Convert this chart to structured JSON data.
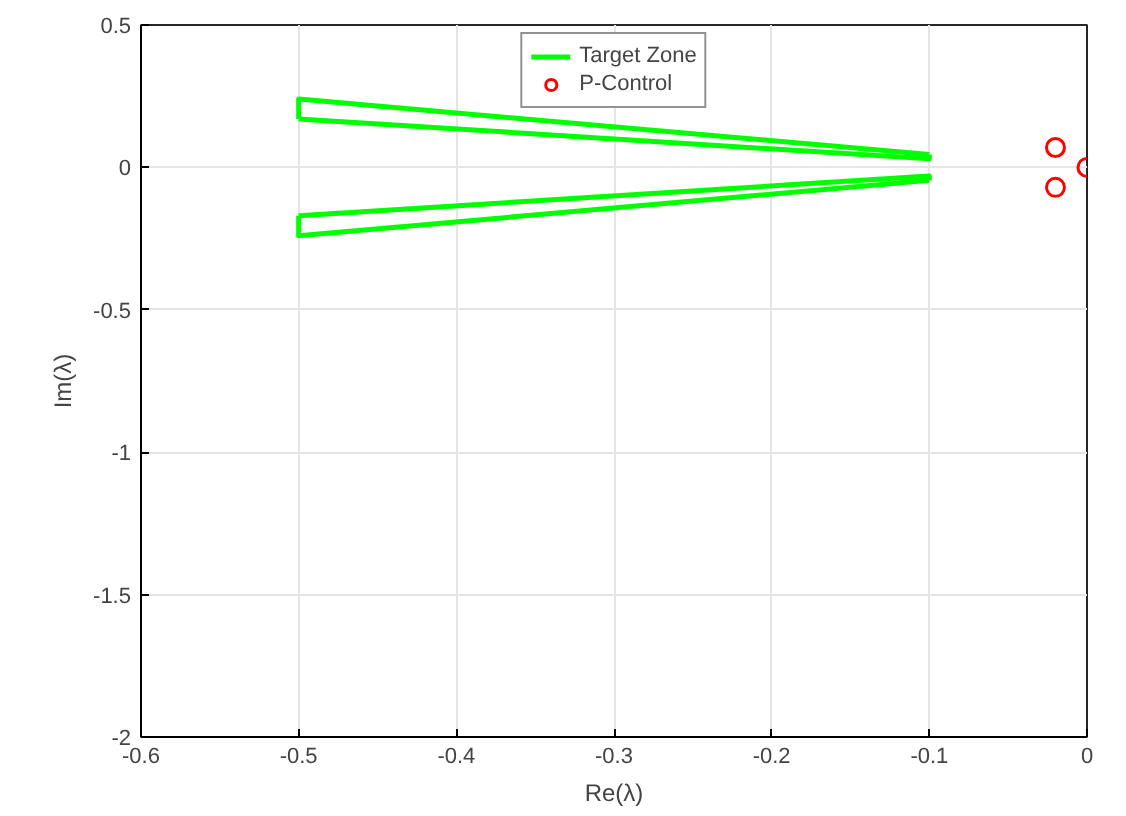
{
  "chart_data": {
    "type": "line",
    "xlabel": "Re(λ)",
    "ylabel": "Im(λ)",
    "series": [
      {
        "name": "Target Zone",
        "color": "#00ff00",
        "x": [
          -0.5,
          -0.5,
          -0.1
        ],
        "values": [
          0.17,
          0.24,
          0.045
        ]
      },
      {
        "color": "#00ff00",
        "x": [
          -0.5,
          -0.1,
          -0.1
        ],
        "values": [
          0.17,
          0.03,
          0.045
        ]
      },
      {
        "color": "#00ff00",
        "x": [
          -0.5,
          -0.5,
          -0.1
        ],
        "values": [
          -0.17,
          -0.24,
          -0.045
        ]
      },
      {
        "color": "#00ff00",
        "x": [
          -0.5,
          -0.1,
          -0.1
        ],
        "values": [
          -0.17,
          -0.03,
          -0.045
        ]
      },
      {
        "name": "P-Control",
        "type": "scatter",
        "color": "#ff0000",
        "marker": "circle",
        "x": [
          0,
          -0.02,
          -0.02
        ],
        "values": [
          0,
          0.07,
          -0.07
        ]
      }
    ],
    "xlim": [
      -0.6,
      0
    ],
    "xticks": [
      -0.6,
      -0.5,
      -0.4,
      -0.3,
      -0.2,
      -0.1,
      0
    ],
    "ylim": [
      -2,
      0.5
    ],
    "yticks": [
      -2,
      -1.5,
      -1,
      -0.5,
      0,
      0.5
    ],
    "grid": true,
    "legend": "top"
  }
}
